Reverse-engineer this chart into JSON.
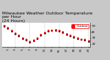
{
  "title": "Milwaukee Weather Outdoor Temperature\nper Hour\n(24 Hours)",
  "hours": [
    0,
    1,
    2,
    3,
    4,
    5,
    6,
    7,
    8,
    9,
    10,
    11,
    12,
    13,
    14,
    15,
    16,
    17,
    18,
    19,
    20,
    21,
    22,
    23
  ],
  "temps_red": [
    50,
    47,
    42,
    38,
    34,
    30,
    27,
    24,
    26,
    30,
    35,
    39,
    42,
    43,
    44,
    42,
    40,
    37,
    34,
    32,
    30,
    28,
    27,
    25
  ],
  "temps_black": [
    49,
    46,
    41,
    37,
    33,
    29,
    26,
    23,
    25,
    29,
    34,
    38,
    41,
    42,
    43,
    41,
    39,
    36,
    33,
    31,
    29,
    27,
    26,
    24
  ],
  "ylim": [
    15,
    55
  ],
  "xlim": [
    -0.5,
    23.5
  ],
  "yticks": [
    20,
    30,
    40,
    50
  ],
  "xtick_positions": [
    1,
    3,
    5,
    7,
    9,
    11,
    13,
    15,
    17,
    19,
    21,
    23
  ],
  "xtick_labels": [
    "1",
    "3",
    "5",
    "7",
    "9",
    "11",
    "13",
    "15",
    "17",
    "19",
    "21",
    "23"
  ],
  "grid_positions": [
    3,
    7,
    11,
    15,
    19,
    23
  ],
  "bg_color": "#c8c8c8",
  "plot_bg_color": "#ffffff",
  "red_color": "#ff0000",
  "black_color": "#000000",
  "legend_label": "Outdoor",
  "legend_color": "#ff0000",
  "title_fontsize": 4.5,
  "tick_fontsize": 3.2,
  "marker_size": 1.0
}
